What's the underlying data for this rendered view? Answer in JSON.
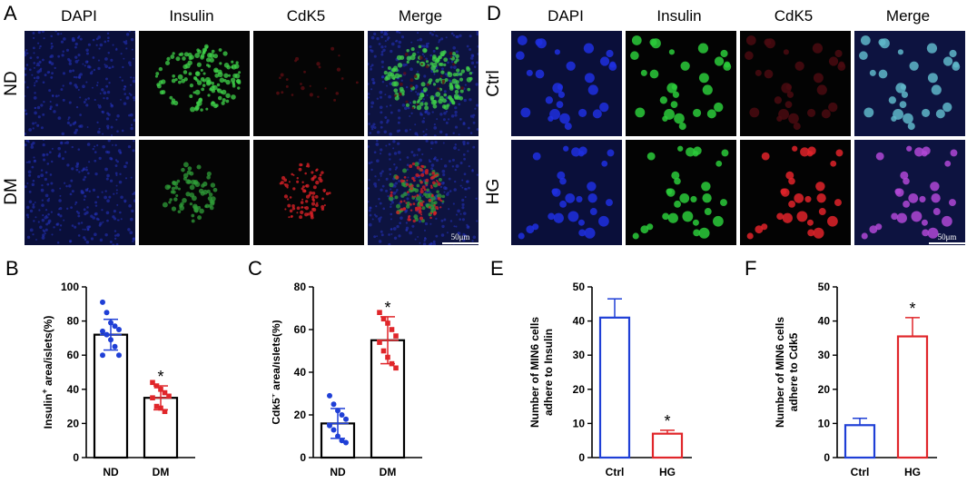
{
  "panel_letters": [
    "A",
    "B",
    "C",
    "D",
    "E",
    "F"
  ],
  "channels_A": [
    "DAPI",
    "Insulin",
    "CdK5",
    "Merge"
  ],
  "channels_D": [
    "DAPI",
    "Insulin",
    "CdK5",
    "Merge"
  ],
  "rows_A": [
    "ND",
    "DM"
  ],
  "rows_D": [
    "Ctrl",
    "HG"
  ],
  "scale_A": "50μm",
  "scale_D": "50μm",
  "colors": {
    "blue": "#1f3fd6",
    "red": "#e0262a",
    "green": "#22c33a",
    "dapi": "#1a26c8"
  },
  "chart_data": [
    {
      "id": "B",
      "type": "bar",
      "categories": [
        "ND",
        "DM"
      ],
      "values": [
        72,
        35
      ],
      "error": [
        9,
        7
      ],
      "points": [
        [
          91,
          85,
          79,
          77,
          75,
          74,
          72,
          69,
          65,
          60,
          60
        ],
        [
          44,
          42,
          40,
          38,
          36,
          35,
          30,
          29,
          27
        ]
      ],
      "point_colors": [
        "#1f3fd6",
        "#e0262a"
      ],
      "ylim": [
        0,
        100
      ],
      "yticks": [
        0,
        20,
        40,
        60,
        80,
        100
      ],
      "ylabel_pre": "Insulin",
      "ylabel_sup": "+",
      "ylabel_post": " area/islets(%)",
      "significance": [
        {
          "category": "DM",
          "label": "*"
        }
      ]
    },
    {
      "id": "C",
      "type": "bar",
      "categories": [
        "ND",
        "DM"
      ],
      "values": [
        16,
        55
      ],
      "error": [
        7,
        11
      ],
      "points": [
        [
          29,
          25,
          22,
          20,
          18,
          15,
          13,
          10,
          8,
          7
        ],
        [
          68,
          65,
          63,
          60,
          57,
          54,
          50,
          47,
          44,
          42
        ]
      ],
      "point_colors": [
        "#1f3fd6",
        "#e0262a"
      ],
      "ylim": [
        0,
        80
      ],
      "yticks": [
        0,
        20,
        40,
        60,
        80
      ],
      "ylabel_pre": "Cdk5",
      "ylabel_sup": "+",
      "ylabel_post": " area/islets(%)",
      "significance": [
        {
          "category": "DM",
          "label": "*"
        }
      ]
    },
    {
      "id": "E",
      "type": "bar",
      "categories": [
        "Ctrl",
        "HG"
      ],
      "values": [
        41,
        7
      ],
      "error": [
        5.5,
        1
      ],
      "bar_colors": [
        "#1f3fd6",
        "#e0262a"
      ],
      "ylim": [
        0,
        50
      ],
      "yticks": [
        0,
        10,
        20,
        30,
        40,
        50
      ],
      "ylabel_lines": [
        "Number of MIN6 cells",
        "adhere to Insulin"
      ],
      "significance": [
        {
          "category": "HG",
          "label": "*"
        }
      ]
    },
    {
      "id": "F",
      "type": "bar",
      "categories": [
        "Ctrl",
        "HG"
      ],
      "values": [
        9.5,
        35.5
      ],
      "error": [
        2,
        5.5
      ],
      "bar_colors": [
        "#1f3fd6",
        "#e0262a"
      ],
      "ylim": [
        0,
        50
      ],
      "yticks": [
        0,
        10,
        20,
        30,
        40,
        50
      ],
      "ylabel_lines": [
        "Number of MIN6 cells",
        "adhere to Cdk5"
      ],
      "significance": [
        {
          "category": "HG",
          "label": "*"
        }
      ]
    }
  ]
}
